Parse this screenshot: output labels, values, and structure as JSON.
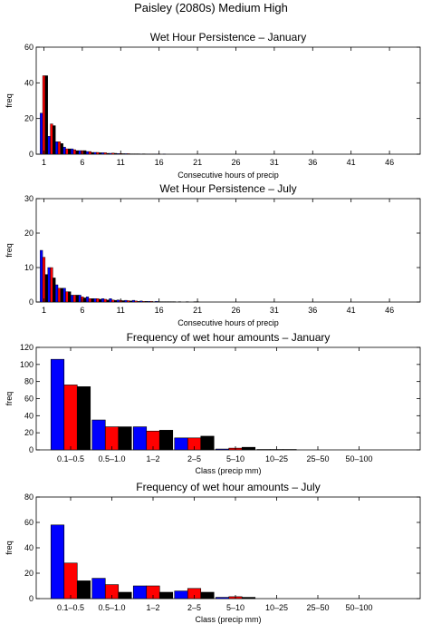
{
  "page": {
    "title": "Paisley (2080s) Medium High"
  },
  "colors": {
    "scenario_a": "#0000ff",
    "scenario_b": "#ff0000",
    "scenario_c": "#000000",
    "axes": "#000000"
  },
  "chart_data": [
    {
      "type": "bar",
      "title": "Wet Hour Persistence – January",
      "xlabel": "Consecutive hours of precip",
      "ylabel": "freq",
      "ylim": [
        0,
        60
      ],
      "yticks": [
        0,
        20,
        40,
        60
      ],
      "xticks": [
        1,
        6,
        11,
        16,
        21,
        26,
        31,
        36,
        41,
        46
      ],
      "xlim": [
        0,
        50
      ],
      "categories": [
        1,
        2,
        3,
        4,
        5,
        6,
        7,
        8,
        9,
        10,
        11,
        12,
        13,
        14,
        15,
        16,
        17,
        18
      ],
      "series": [
        {
          "values": [
            23,
            10,
            7,
            4,
            3,
            2,
            1.5,
            1,
            0.8,
            0.5,
            0.4,
            0.3,
            0.2,
            0.1,
            0.1,
            0.1,
            0.1,
            0
          ]
        },
        {
          "values": [
            44,
            17,
            7,
            3,
            2.5,
            2,
            1.5,
            1,
            0.8,
            0.6,
            0.4,
            0.3,
            0.2,
            0.2,
            0.1,
            0.1,
            0,
            0
          ]
        },
        {
          "values": [
            44,
            16,
            6,
            3,
            2,
            2,
            1,
            0.8,
            0.5,
            0.5,
            0.3,
            0.2,
            0.2,
            0.1,
            0.1,
            0,
            0,
            0
          ]
        }
      ]
    },
    {
      "type": "bar",
      "title": "Wet Hour Persistence – July",
      "xlabel": "Consecutive hours of precip",
      "ylabel": "freq",
      "ylim": [
        0,
        30
      ],
      "yticks": [
        0,
        10,
        20,
        30
      ],
      "xticks": [
        1,
        6,
        11,
        16,
        21,
        26,
        31,
        36,
        41,
        46
      ],
      "xlim": [
        0,
        50
      ],
      "categories": [
        1,
        2,
        3,
        4,
        5,
        6,
        7,
        8,
        9,
        10,
        11,
        12,
        13,
        14,
        15,
        16,
        17,
        18,
        19,
        20,
        21,
        22
      ],
      "series": [
        {
          "values": [
            15,
            10,
            5,
            4,
            2,
            2,
            1.5,
            1,
            1,
            1,
            0.6,
            0.5,
            0.5,
            0.3,
            0.2,
            0.2,
            0.1,
            0.1,
            0.1,
            0.1,
            0.1,
            0
          ]
        },
        {
          "values": [
            13,
            10,
            4,
            3,
            2,
            1.5,
            1,
            1,
            0.8,
            0.6,
            0.5,
            0.4,
            0.3,
            0.2,
            0.2,
            0.1,
            0.1,
            0.1,
            0,
            0,
            0.1,
            0
          ]
        },
        {
          "values": [
            8,
            7,
            4,
            3,
            2,
            1.2,
            1,
            0.8,
            0.6,
            0.5,
            0.4,
            0.3,
            0.2,
            0.2,
            0.1,
            0.1,
            0.1,
            0,
            0,
            0,
            0,
            0
          ]
        }
      ]
    },
    {
      "type": "bar",
      "title": "Frequency of wet hour amounts – January",
      "xlabel": "Class (precip mm)",
      "ylabel": "freq",
      "ylim": [
        0,
        120
      ],
      "yticks": [
        0,
        20,
        40,
        60,
        80,
        100,
        120
      ],
      "categories": [
        "0.1–0.5",
        "0.5–1.0",
        "1–2",
        "2–5",
        "5–10",
        "10–25",
        "25–50",
        "50–100"
      ],
      "series": [
        {
          "values": [
            106,
            35,
            27,
            14,
            1,
            0.5,
            0,
            0
          ]
        },
        {
          "values": [
            76,
            27,
            22,
            14,
            2,
            0.5,
            0,
            0
          ]
        },
        {
          "values": [
            74,
            27,
            23,
            16,
            3,
            0.5,
            0,
            0
          ]
        }
      ]
    },
    {
      "type": "bar",
      "title": "Frequency of wet hour amounts – July",
      "xlabel": "Class (precip mm)",
      "ylabel": "freq",
      "ylim": [
        0,
        80
      ],
      "yticks": [
        0,
        20,
        40,
        60,
        80
      ],
      "categories": [
        "0.1–0.5",
        "0.5–1.0",
        "1–2",
        "2–5",
        "5–10",
        "10–25",
        "25–50",
        "50–100"
      ],
      "series": [
        {
          "values": [
            58,
            16,
            10,
            6,
            1,
            0,
            0,
            0
          ]
        },
        {
          "values": [
            28,
            11,
            10,
            8,
            1.5,
            0,
            0,
            0
          ]
        },
        {
          "values": [
            14,
            5,
            5,
            5,
            1,
            0,
            0,
            0
          ]
        }
      ]
    }
  ]
}
